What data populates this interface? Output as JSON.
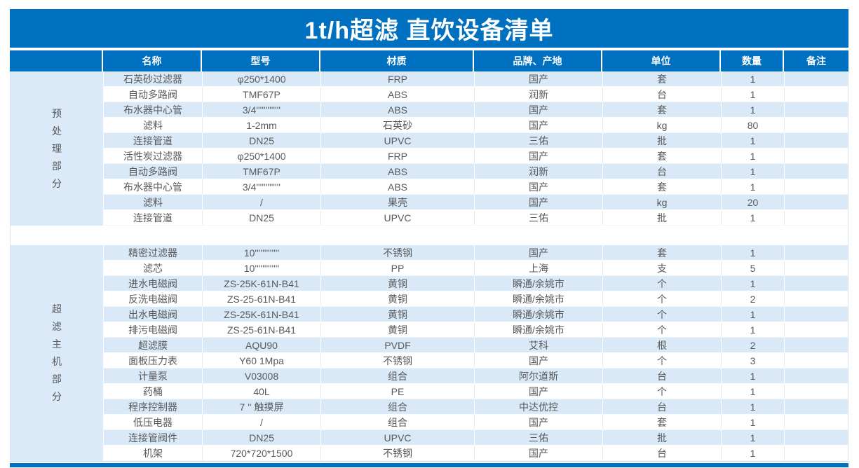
{
  "title": "1t/h超滤 直饮设备清单",
  "header": {
    "columns": [
      "名称",
      "型号",
      "材质",
      "品牌、产地",
      "单位",
      "数量",
      "备注"
    ]
  },
  "sections": [
    {
      "label": "预处理部分",
      "rows": [
        [
          "石英砂过滤器",
          "φ250*1400",
          "FRP",
          "国产",
          "套",
          "1",
          ""
        ],
        [
          "自动多路阀",
          "TMF67P",
          "ABS",
          "润新",
          "台",
          "1",
          ""
        ],
        [
          "布水器中心管",
          "3/4'''''''''''''",
          "ABS",
          "国产",
          "套",
          "1",
          ""
        ],
        [
          "滤料",
          "1-2mm",
          "石英砂",
          "国产",
          "kg",
          "80",
          ""
        ],
        [
          "连接管道",
          "DN25",
          "UPVC",
          "三佑",
          "批",
          "1",
          ""
        ],
        [
          "活性炭过滤器",
          "φ250*1400",
          "FRP",
          "国产",
          "套",
          "1",
          ""
        ],
        [
          "自动多路阀",
          "TMF67P",
          "ABS",
          "润新",
          "台",
          "1",
          ""
        ],
        [
          "布水器中心管",
          "3/4'''''''''''''",
          "ABS",
          "国产",
          "套",
          "1",
          ""
        ],
        [
          "滤料",
          "/",
          "果壳",
          "国产",
          "kg",
          "20",
          ""
        ],
        [
          "连接管道",
          "DN25",
          "UPVC",
          "三佑",
          "批",
          "1",
          ""
        ]
      ]
    },
    {
      "label": "超滤主机部分",
      "rows": [
        [
          "精密过滤器",
          "10'''''''''''''",
          "不锈钢",
          "国产",
          "套",
          "1",
          ""
        ],
        [
          "滤芯",
          "10'''''''''''''",
          "PP",
          "上海",
          "支",
          "5",
          ""
        ],
        [
          "进水电磁阀",
          "ZS-25K-61N-B41",
          "黄铜",
          "瞬通/余姚市",
          "个",
          "1",
          ""
        ],
        [
          "反洗电磁阀",
          "ZS-25-61N-B41",
          "黄铜",
          "瞬通/余姚市",
          "个",
          "2",
          ""
        ],
        [
          "出水电磁阀",
          "ZS-25K-61N-B41",
          "黄铜",
          "瞬通/余姚市",
          "个",
          "1",
          ""
        ],
        [
          "排污电磁阀",
          "ZS-25-61N-B41",
          "黄铜",
          "瞬通/余姚市",
          "个",
          "1",
          ""
        ],
        [
          "超滤膜",
          "AQU90",
          "PVDF",
          "艾科",
          "根",
          "2",
          ""
        ],
        [
          "面板压力表",
          "Y60 1Mpa",
          "不锈钢",
          "国产",
          "个",
          "3",
          ""
        ],
        [
          "计量泵",
          "V03008",
          "组合",
          "阿尔道斯",
          "台",
          "1",
          ""
        ],
        [
          "药桶",
          "40L",
          "PE",
          "国产",
          "个",
          "1",
          ""
        ],
        [
          "程序控制器",
          "7 '' 触摸屏",
          "组合",
          "中达优控",
          "台",
          "1",
          ""
        ],
        [
          "低压电器",
          "/",
          "组合",
          "国产",
          "套",
          "1",
          ""
        ],
        [
          "连接管阀件",
          "DN25",
          "UPVC",
          "三佑",
          "批",
          "1",
          ""
        ],
        [
          "机架",
          "720*720*1500",
          "不锈钢",
          "国产",
          "台",
          "1",
          ""
        ]
      ]
    }
  ],
  "colors": {
    "header_bg": "#0070C0",
    "stripe_bg": "#D9E9F8",
    "group_bg": "#DBEAF9",
    "text": "#595959"
  }
}
